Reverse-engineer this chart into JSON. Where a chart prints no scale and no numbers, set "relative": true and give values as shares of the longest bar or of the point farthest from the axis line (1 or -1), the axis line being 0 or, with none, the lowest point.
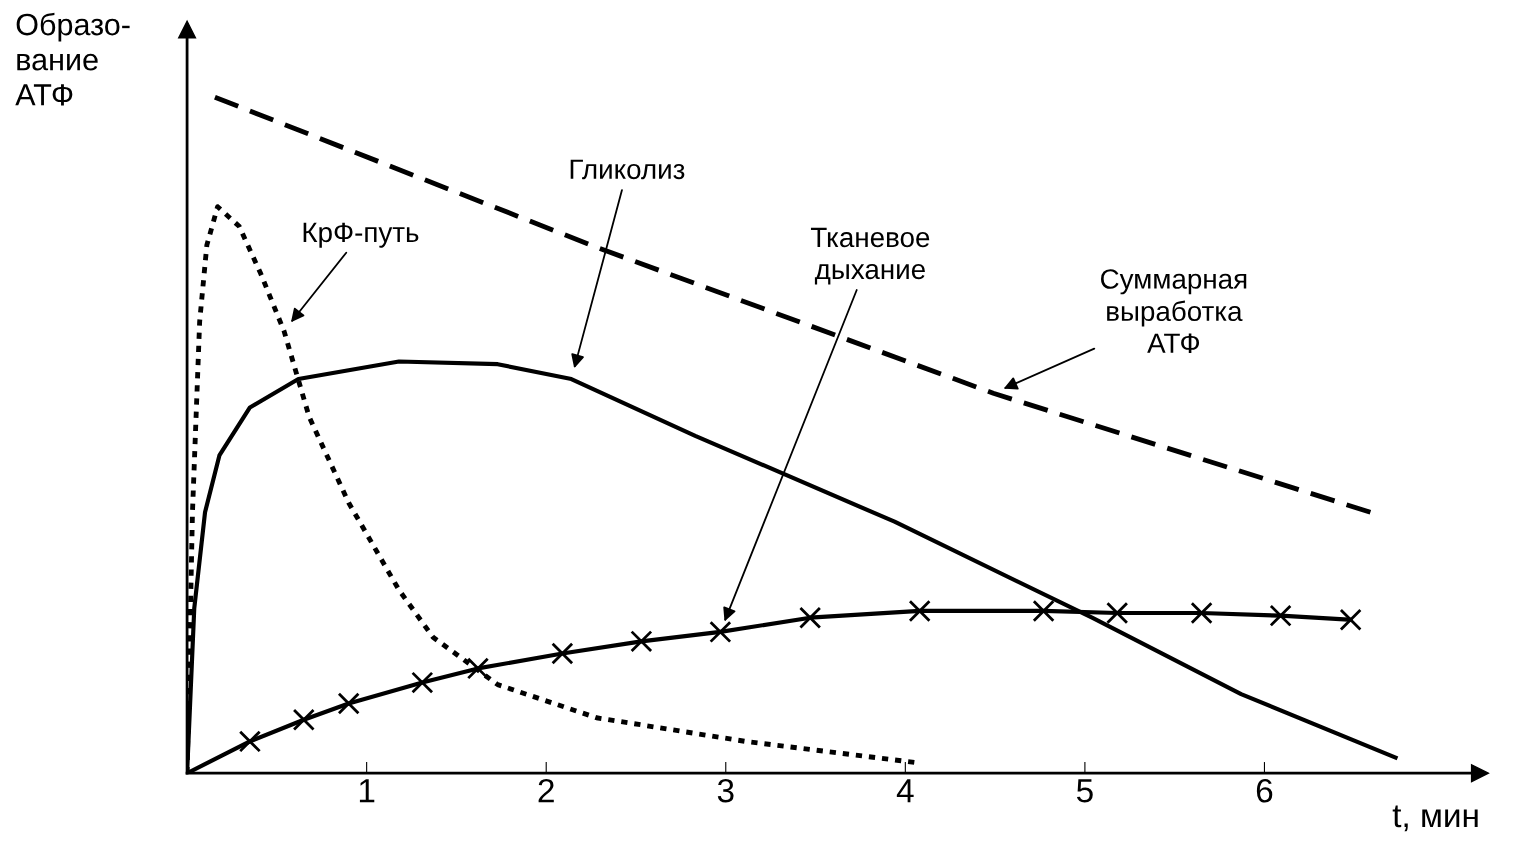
{
  "chart_data": {
    "type": "line",
    "relative": true,
    "xlabel": "t, мин",
    "ylabel": "Образо-\nвание\nАТФ",
    "xlim": [
      0,
      7.2
    ],
    "xticks": [
      1,
      2,
      3,
      4,
      5,
      6
    ],
    "tick_labels": "x",
    "grid": false,
    "legend": false,
    "series": [
      {
        "name": "Суммарная выработка АТФ",
        "color": "#000000",
        "line_style": "dashed",
        "marker": "none",
        "x": [
          0.155,
          2.28,
          4.49,
          6.59
        ],
        "values": [
          1.0,
          0.778,
          0.562,
          0.386
        ]
      },
      {
        "name": "КрФ-путь",
        "color": "#000000",
        "line_style": "dotted",
        "marker": "none",
        "x": [
          0,
          0.03,
          0.07,
          0.11,
          0.17,
          0.29,
          0.41,
          0.54,
          0.68,
          0.9,
          1.18,
          1.37,
          1.73,
          2.28,
          3.11,
          4.05
        ],
        "values": [
          0,
          0.386,
          0.668,
          0.781,
          0.838,
          0.809,
          0.739,
          0.654,
          0.527,
          0.4,
          0.271,
          0.201,
          0.131,
          0.082,
          0.047,
          0.016
        ]
      },
      {
        "name": "Гликолиз",
        "color": "#000000",
        "line_style": "solid",
        "marker": "none",
        "x": [
          0,
          0.04,
          0.1,
          0.18,
          0.35,
          0.62,
          1.18,
          1.73,
          2.14,
          2.83,
          3.94,
          5.04,
          5.87,
          6.73
        ],
        "values": [
          0,
          0.244,
          0.386,
          0.47,
          0.541,
          0.583,
          0.609,
          0.605,
          0.583,
          0.499,
          0.372,
          0.23,
          0.117,
          0.023
        ]
      },
      {
        "name": "Тканевое дыхание",
        "color": "#000000",
        "line_style": "solid",
        "marker": "cross",
        "x": [
          0,
          0.35,
          0.65,
          0.9,
          1.31,
          1.62,
          2.09,
          2.53,
          2.97,
          3.47,
          4.08,
          4.77,
          5.18,
          5.65,
          6.09,
          6.48
        ],
        "values": [
          0,
          0.047,
          0.079,
          0.103,
          0.134,
          0.155,
          0.177,
          0.195,
          0.209,
          0.23,
          0.24,
          0.24,
          0.237,
          0.237,
          0.233,
          0.227
        ]
      }
    ]
  }
}
